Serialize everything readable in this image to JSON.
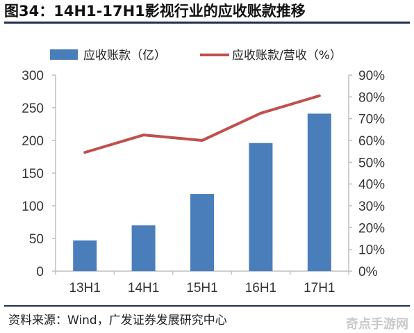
{
  "header": {
    "title": "图34：14H1-17H1影视行业的应收账款推移"
  },
  "footer": {
    "source": "资料来源：Wind，广发证券发展研究中心",
    "watermark": "奇点手游网"
  },
  "colors": {
    "bar": "#4a7ebb",
    "line": "#c0504d",
    "axis": "#bfbfbf",
    "rule": "#1f2f4f"
  },
  "chart_data": {
    "type": "bar",
    "categories": [
      "13H1",
      "14H1",
      "15H1",
      "16H1",
      "17H1"
    ],
    "series": [
      {
        "name": "应收账款（亿）",
        "type": "bar",
        "axis": "left",
        "values": [
          47,
          70,
          118,
          196,
          241
        ]
      },
      {
        "name": "应收账款/营收（%）",
        "type": "line",
        "axis": "right",
        "values": [
          54.5,
          62.5,
          60,
          72.5,
          80.5
        ]
      }
    ],
    "ylim_left": [
      0,
      300
    ],
    "yticks_left": [
      "0",
      "50",
      "100",
      "150",
      "200",
      "250",
      "300"
    ],
    "ylim_right": [
      0,
      90
    ],
    "yticks_right": [
      "0%",
      "10%",
      "20%",
      "30%",
      "40%",
      "50%",
      "60%",
      "70%",
      "80%",
      "90%"
    ],
    "legend_position": "top",
    "grid": false
  }
}
